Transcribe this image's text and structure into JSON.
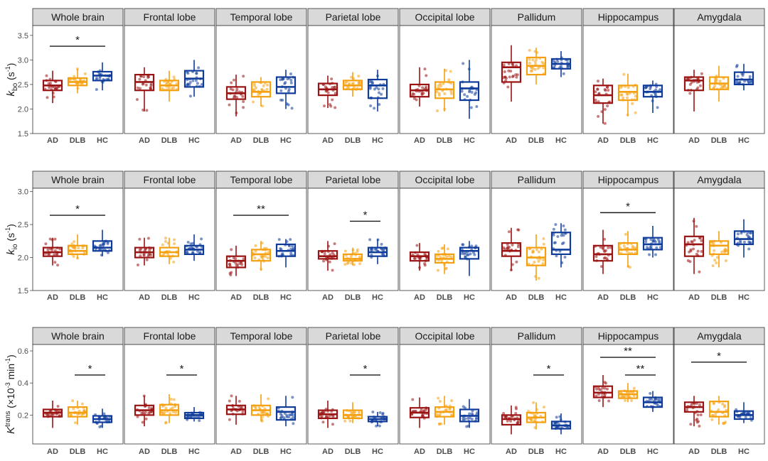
{
  "groups": [
    "AD",
    "DLB",
    "HC"
  ],
  "regions": [
    "Whole brain",
    "Frontal lobe",
    "Temporal lobe",
    "Parietal lobe",
    "Occipital lobe",
    "Pallidum",
    "Hippocampus",
    "Amygdala"
  ],
  "colors": {
    "AD": "#9b1414",
    "DLB": "#f5a010",
    "HC": "#0f3c9a",
    "strip_fill": "#d9d9d9",
    "panel_border": "#333333"
  },
  "chart_data": [
    {
      "type": "box",
      "metric": "kbo",
      "ylabel_main": "k",
      "ylabel_sub": "bo",
      "ylabel_unit_pre": " (s",
      "ylabel_unit_sup": "-1",
      "ylabel_unit_post": ")",
      "ylim": [
        1.5,
        3.7
      ],
      "yticks": [
        1.5,
        2.0,
        2.5,
        3.0,
        3.5
      ],
      "ytick_labels": [
        "1.5",
        "2.0",
        "2.5",
        "3.0",
        "3.5"
      ],
      "panels": [
        {
          "region": "Whole brain",
          "boxes": [
            {
              "q1": 2.38,
              "med": 2.48,
              "q3": 2.58,
              "lo": 2.12,
              "hi": 2.78
            },
            {
              "q1": 2.48,
              "med": 2.55,
              "q3": 2.63,
              "lo": 2.32,
              "hi": 2.82
            },
            {
              "q1": 2.58,
              "med": 2.68,
              "q3": 2.76,
              "lo": 2.38,
              "hi": 2.95
            }
          ],
          "sig": [
            {
              "from": 0,
              "to": 2,
              "y": 3.28,
              "label": "*"
            }
          ]
        },
        {
          "region": "Frontal lobe",
          "boxes": [
            {
              "q1": 2.38,
              "med": 2.55,
              "q3": 2.7,
              "lo": 1.95,
              "hi": 2.85
            },
            {
              "q1": 2.38,
              "med": 2.48,
              "q3": 2.58,
              "lo": 2.15,
              "hi": 2.78
            },
            {
              "q1": 2.45,
              "med": 2.62,
              "q3": 2.78,
              "lo": 2.25,
              "hi": 3.0
            }
          ],
          "sig": []
        },
        {
          "region": "Temporal lobe",
          "boxes": [
            {
              "q1": 2.2,
              "med": 2.32,
              "q3": 2.45,
              "lo": 1.85,
              "hi": 2.7
            },
            {
              "q1": 2.25,
              "med": 2.35,
              "q3": 2.55,
              "lo": 2.05,
              "hi": 2.65
            },
            {
              "q1": 2.32,
              "med": 2.45,
              "q3": 2.65,
              "lo": 2.0,
              "hi": 2.8
            }
          ],
          "sig": []
        },
        {
          "region": "Parietal lobe",
          "boxes": [
            {
              "q1": 2.28,
              "med": 2.4,
              "q3": 2.52,
              "lo": 2.02,
              "hi": 2.68
            },
            {
              "q1": 2.4,
              "med": 2.48,
              "q3": 2.58,
              "lo": 2.25,
              "hi": 2.75
            },
            {
              "q1": 2.22,
              "med": 2.48,
              "q3": 2.6,
              "lo": 1.95,
              "hi": 2.8
            }
          ],
          "sig": []
        },
        {
          "region": "Occipital lobe",
          "boxes": [
            {
              "q1": 2.25,
              "med": 2.38,
              "q3": 2.5,
              "lo": 2.05,
              "hi": 2.85
            },
            {
              "q1": 2.22,
              "med": 2.4,
              "q3": 2.55,
              "lo": 1.95,
              "hi": 2.82
            },
            {
              "q1": 2.18,
              "med": 2.42,
              "q3": 2.55,
              "lo": 1.8,
              "hi": 3.0
            }
          ],
          "sig": []
        },
        {
          "region": "Pallidum",
          "boxes": [
            {
              "q1": 2.55,
              "med": 2.85,
              "q3": 2.95,
              "lo": 2.15,
              "hi": 3.3
            },
            {
              "q1": 2.7,
              "med": 2.88,
              "q3": 3.05,
              "lo": 2.5,
              "hi": 3.25
            },
            {
              "q1": 2.82,
              "med": 2.92,
              "q3": 3.02,
              "lo": 2.65,
              "hi": 3.18
            }
          ],
          "sig": []
        },
        {
          "region": "Hippocampus",
          "boxes": [
            {
              "q1": 2.12,
              "med": 2.28,
              "q3": 2.48,
              "lo": 1.7,
              "hi": 2.62
            },
            {
              "q1": 2.18,
              "med": 2.35,
              "q3": 2.48,
              "lo": 1.85,
              "hi": 2.72
            },
            {
              "q1": 2.25,
              "med": 2.35,
              "q3": 2.48,
              "lo": 1.92,
              "hi": 2.58
            }
          ],
          "sig": []
        },
        {
          "region": "Amygdala",
          "boxes": [
            {
              "q1": 2.38,
              "med": 2.58,
              "q3": 2.65,
              "lo": 1.95,
              "hi": 2.8
            },
            {
              "q1": 2.4,
              "med": 2.52,
              "q3": 2.65,
              "lo": 2.15,
              "hi": 2.88
            },
            {
              "q1": 2.5,
              "med": 2.6,
              "q3": 2.75,
              "lo": 2.38,
              "hi": 2.92
            }
          ],
          "sig": []
        }
      ]
    },
    {
      "type": "box",
      "metric": "kio",
      "ylabel_main": "k",
      "ylabel_sub": "io",
      "ylabel_unit_pre": " (s",
      "ylabel_unit_sup": "-1",
      "ylabel_unit_post": ")",
      "ylim": [
        1.5,
        3.05
      ],
      "yticks": [
        1.5,
        2.0,
        2.5,
        3.0
      ],
      "ytick_labels": [
        "1.5",
        "2.0",
        "2.5",
        "3.0"
      ],
      "panels": [
        {
          "region": "Whole brain",
          "boxes": [
            {
              "q1": 2.02,
              "med": 2.08,
              "q3": 2.15,
              "lo": 1.88,
              "hi": 2.3
            },
            {
              "q1": 2.05,
              "med": 2.1,
              "q3": 2.18,
              "lo": 1.98,
              "hi": 2.35
            },
            {
              "q1": 2.1,
              "med": 2.15,
              "q3": 2.25,
              "lo": 2.02,
              "hi": 2.42
            }
          ],
          "sig": [
            {
              "from": 0,
              "to": 2,
              "y": 2.64,
              "label": "*"
            }
          ]
        },
        {
          "region": "Frontal lobe",
          "boxes": [
            {
              "q1": 2.0,
              "med": 2.08,
              "q3": 2.15,
              "lo": 1.88,
              "hi": 2.3
            },
            {
              "q1": 2.02,
              "med": 2.08,
              "q3": 2.15,
              "lo": 1.9,
              "hi": 2.3
            },
            {
              "q1": 2.05,
              "med": 2.12,
              "q3": 2.18,
              "lo": 1.95,
              "hi": 2.35
            }
          ],
          "sig": []
        },
        {
          "region": "Temporal lobe",
          "boxes": [
            {
              "q1": 1.85,
              "med": 1.95,
              "q3": 2.02,
              "lo": 1.72,
              "hi": 2.18
            },
            {
              "q1": 1.95,
              "med": 2.05,
              "q3": 2.12,
              "lo": 1.8,
              "hi": 2.25
            },
            {
              "q1": 2.02,
              "med": 2.1,
              "q3": 2.2,
              "lo": 1.85,
              "hi": 2.28
            }
          ],
          "sig": [
            {
              "from": 0,
              "to": 2,
              "y": 2.64,
              "label": "**"
            }
          ]
        },
        {
          "region": "Parietal lobe",
          "boxes": [
            {
              "q1": 1.98,
              "med": 2.02,
              "q3": 2.1,
              "lo": 1.8,
              "hi": 2.25
            },
            {
              "q1": 1.95,
              "med": 1.98,
              "q3": 2.05,
              "lo": 1.88,
              "hi": 2.15
            },
            {
              "q1": 2.02,
              "med": 2.08,
              "q3": 2.15,
              "lo": 1.9,
              "hi": 2.28
            }
          ],
          "sig": [
            {
              "from": 1,
              "to": 2,
              "y": 2.55,
              "label": "*"
            }
          ]
        },
        {
          "region": "Occipital lobe",
          "boxes": [
            {
              "q1": 1.95,
              "med": 2.02,
              "q3": 2.08,
              "lo": 1.8,
              "hi": 2.22
            },
            {
              "q1": 1.92,
              "med": 1.98,
              "q3": 2.05,
              "lo": 1.75,
              "hi": 2.2
            },
            {
              "q1": 1.98,
              "med": 2.1,
              "q3": 2.15,
              "lo": 1.72,
              "hi": 2.25
            }
          ],
          "sig": []
        },
        {
          "region": "Pallidum",
          "boxes": [
            {
              "q1": 2.02,
              "med": 2.1,
              "q3": 2.22,
              "lo": 1.8,
              "hi": 2.45
            },
            {
              "q1": 1.88,
              "med": 2.0,
              "q3": 2.15,
              "lo": 1.65,
              "hi": 2.35
            },
            {
              "q1": 2.05,
              "med": 2.12,
              "q3": 2.38,
              "lo": 1.85,
              "hi": 2.52
            }
          ],
          "sig": []
        },
        {
          "region": "Hippocampus",
          "boxes": [
            {
              "q1": 1.95,
              "med": 2.05,
              "q3": 2.18,
              "lo": 1.75,
              "hi": 2.42
            },
            {
              "q1": 2.05,
              "med": 2.12,
              "q3": 2.22,
              "lo": 1.85,
              "hi": 2.4
            },
            {
              "q1": 2.12,
              "med": 2.2,
              "q3": 2.3,
              "lo": 2.0,
              "hi": 2.48
            }
          ],
          "sig": [
            {
              "from": 0,
              "to": 2,
              "y": 2.68,
              "label": "*"
            }
          ]
        },
        {
          "region": "Amygdala",
          "boxes": [
            {
              "q1": 2.02,
              "med": 2.2,
              "q3": 2.32,
              "lo": 1.75,
              "hi": 2.6
            },
            {
              "q1": 2.05,
              "med": 2.18,
              "q3": 2.25,
              "lo": 1.85,
              "hi": 2.4
            },
            {
              "q1": 2.2,
              "med": 2.28,
              "q3": 2.4,
              "lo": 2.0,
              "hi": 2.58
            }
          ],
          "sig": []
        }
      ]
    },
    {
      "type": "box",
      "metric": "Ktrans",
      "ylabel_main": "K",
      "ylabel_sup": "trans",
      "ylabel_unit_pre": " (×10",
      "ylabel_unit_sup": "-3",
      "ylabel_unit_post": " min",
      "ylabel_unit_sup2": "-1",
      "ylabel_unit_end": ")",
      "ylim": [
        0.02,
        0.64
      ],
      "yticks": [
        0.2,
        0.4,
        0.6
      ],
      "ytick_labels": [
        "0.2",
        "0.4",
        "0.6"
      ],
      "panels": [
        {
          "region": "Whole brain",
          "boxes": [
            {
              "q1": 0.19,
              "med": 0.215,
              "q3": 0.235,
              "lo": 0.12,
              "hi": 0.29
            },
            {
              "q1": 0.19,
              "med": 0.215,
              "q3": 0.25,
              "lo": 0.14,
              "hi": 0.29
            },
            {
              "q1": 0.155,
              "med": 0.175,
              "q3": 0.195,
              "lo": 0.12,
              "hi": 0.24
            }
          ],
          "sig": [
            {
              "from": 1,
              "to": 2,
              "y": 0.45,
              "label": "*"
            }
          ]
        },
        {
          "region": "Frontal lobe",
          "boxes": [
            {
              "q1": 0.2,
              "med": 0.23,
              "q3": 0.26,
              "lo": 0.13,
              "hi": 0.32
            },
            {
              "q1": 0.2,
              "med": 0.23,
              "q3": 0.265,
              "lo": 0.15,
              "hi": 0.33
            },
            {
              "q1": 0.18,
              "med": 0.2,
              "q3": 0.215,
              "lo": 0.16,
              "hi": 0.25
            }
          ],
          "sig": [
            {
              "from": 1,
              "to": 2,
              "y": 0.45,
              "label": "*"
            }
          ]
        },
        {
          "region": "Temporal lobe",
          "boxes": [
            {
              "q1": 0.205,
              "med": 0.235,
              "q3": 0.26,
              "lo": 0.14,
              "hi": 0.32
            },
            {
              "q1": 0.2,
              "med": 0.23,
              "q3": 0.26,
              "lo": 0.16,
              "hi": 0.33
            },
            {
              "q1": 0.17,
              "med": 0.22,
              "q3": 0.25,
              "lo": 0.13,
              "hi": 0.32
            }
          ],
          "sig": []
        },
        {
          "region": "Parietal lobe",
          "boxes": [
            {
              "q1": 0.18,
              "med": 0.205,
              "q3": 0.23,
              "lo": 0.12,
              "hi": 0.29
            },
            {
              "q1": 0.18,
              "med": 0.2,
              "q3": 0.23,
              "lo": 0.15,
              "hi": 0.28
            },
            {
              "q1": 0.16,
              "med": 0.175,
              "q3": 0.19,
              "lo": 0.13,
              "hi": 0.22
            }
          ],
          "sig": [
            {
              "from": 1,
              "to": 2,
              "y": 0.45,
              "label": "*"
            }
          ]
        },
        {
          "region": "Occipital lobe",
          "boxes": [
            {
              "q1": 0.185,
              "med": 0.215,
              "q3": 0.245,
              "lo": 0.12,
              "hi": 0.31
            },
            {
              "q1": 0.19,
              "med": 0.22,
              "q3": 0.25,
              "lo": 0.14,
              "hi": 0.32
            },
            {
              "q1": 0.16,
              "med": 0.195,
              "q3": 0.235,
              "lo": 0.12,
              "hi": 0.3
            }
          ],
          "sig": []
        },
        {
          "region": "Pallidum",
          "boxes": [
            {
              "q1": 0.14,
              "med": 0.175,
              "q3": 0.2,
              "lo": 0.08,
              "hi": 0.26
            },
            {
              "q1": 0.155,
              "med": 0.185,
              "q3": 0.215,
              "lo": 0.11,
              "hi": 0.28
            },
            {
              "q1": 0.115,
              "med": 0.135,
              "q3": 0.16,
              "lo": 0.08,
              "hi": 0.21
            }
          ],
          "sig": [
            {
              "from": 1,
              "to": 2,
              "y": 0.45,
              "label": "*"
            }
          ]
        },
        {
          "region": "Hippocampus",
          "boxes": [
            {
              "q1": 0.31,
              "med": 0.34,
              "q3": 0.38,
              "lo": 0.25,
              "hi": 0.45
            },
            {
              "q1": 0.305,
              "med": 0.33,
              "q3": 0.35,
              "lo": 0.28,
              "hi": 0.4
            },
            {
              "q1": 0.25,
              "med": 0.28,
              "q3": 0.31,
              "lo": 0.22,
              "hi": 0.35
            }
          ],
          "sig": [
            {
              "from": 0,
              "to": 2,
              "y": 0.56,
              "label": "**"
            },
            {
              "from": 1,
              "to": 2,
              "y": 0.45,
              "label": "**"
            }
          ]
        },
        {
          "region": "Amygdala",
          "boxes": [
            {
              "q1": 0.22,
              "med": 0.25,
              "q3": 0.28,
              "lo": 0.13,
              "hi": 0.32
            },
            {
              "q1": 0.19,
              "med": 0.22,
              "q3": 0.285,
              "lo": 0.14,
              "hi": 0.32
            },
            {
              "q1": 0.175,
              "med": 0.2,
              "q3": 0.225,
              "lo": 0.15,
              "hi": 0.28
            }
          ],
          "sig": [
            {
              "from": 0,
              "to": 2,
              "y": 0.53,
              "label": "*"
            }
          ]
        }
      ]
    }
  ]
}
